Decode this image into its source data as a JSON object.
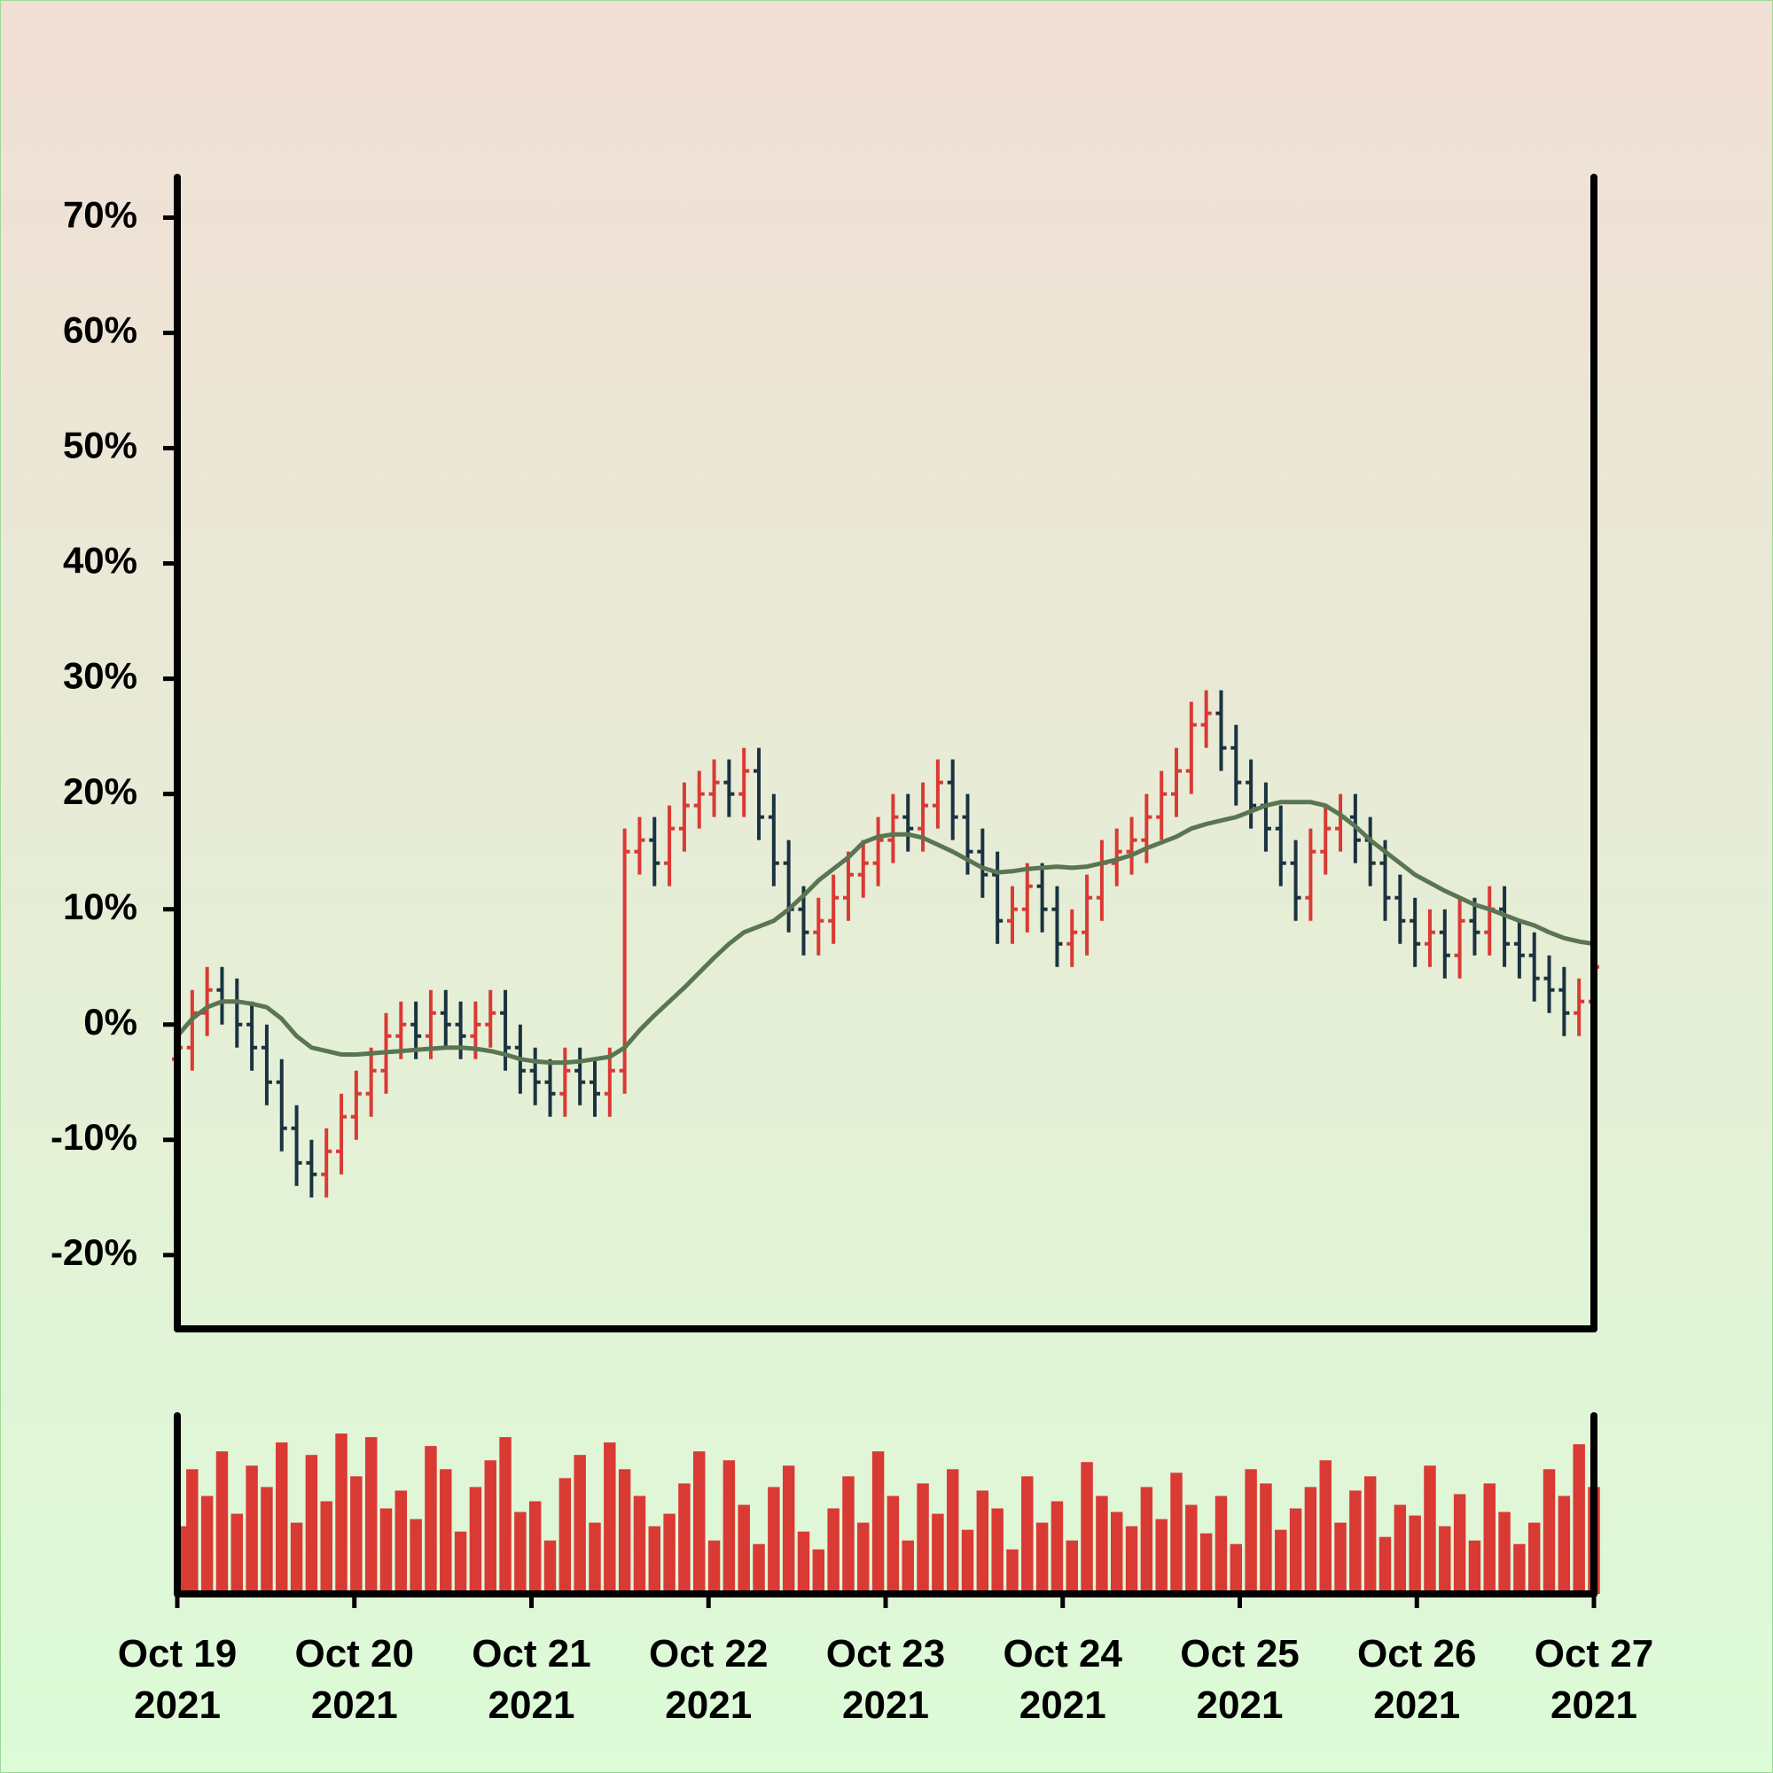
{
  "chart_data": {
    "type": "ohlc",
    "up_color": "#d93a34",
    "down_color": "#1b3340",
    "open": [
      -3,
      -2,
      1,
      3,
      2,
      0,
      -2,
      -5,
      -9,
      -12,
      -13,
      -11,
      -8,
      -6,
      -4,
      -1,
      0,
      -1,
      1,
      0,
      -1,
      0,
      1,
      -2,
      -4,
      -5,
      -6,
      -4,
      -5,
      -6,
      -4,
      15,
      16,
      14,
      17,
      19,
      20,
      21,
      20,
      22,
      18,
      14,
      10,
      8,
      9,
      11,
      13,
      14,
      16,
      18,
      17,
      19,
      21,
      18,
      15,
      13,
      9,
      10,
      12,
      10,
      7,
      8,
      11,
      14,
      15,
      16,
      18,
      20,
      22,
      26,
      27,
      24,
      21,
      19,
      17,
      14,
      11,
      15,
      17,
      18,
      16,
      14,
      11,
      9,
      7,
      8,
      6,
      9,
      8,
      10,
      7,
      6,
      4,
      3,
      1,
      2
    ],
    "high": [
      0,
      3,
      5,
      5,
      4,
      2,
      0,
      -3,
      -7,
      -10,
      -9,
      -6,
      -4,
      -2,
      1,
      2,
      2,
      3,
      3,
      2,
      2,
      3,
      3,
      0,
      -2,
      -3,
      -2,
      -2,
      -3,
      -2,
      17,
      18,
      18,
      19,
      21,
      22,
      23,
      23,
      24,
      24,
      20,
      16,
      12,
      11,
      13,
      15,
      16,
      18,
      20,
      20,
      21,
      23,
      23,
      20,
      17,
      15,
      12,
      14,
      14,
      12,
      10,
      13,
      16,
      17,
      18,
      20,
      22,
      24,
      28,
      29,
      29,
      26,
      23,
      21,
      19,
      16,
      17,
      19,
      20,
      20,
      18,
      16,
      13,
      11,
      10,
      10,
      11,
      11,
      12,
      12,
      9,
      8,
      6,
      5,
      4,
      7
    ],
    "low": [
      -5,
      -4,
      -1,
      0,
      -2,
      -4,
      -7,
      -11,
      -14,
      -15,
      -15,
      -13,
      -10,
      -8,
      -6,
      -3,
      -3,
      -3,
      -2,
      -3,
      -3,
      -2,
      -4,
      -6,
      -7,
      -8,
      -8,
      -7,
      -8,
      -8,
      -6,
      13,
      12,
      12,
      15,
      17,
      18,
      18,
      18,
      16,
      12,
      8,
      6,
      6,
      7,
      9,
      11,
      12,
      14,
      15,
      15,
      17,
      16,
      13,
      11,
      7,
      7,
      8,
      8,
      5,
      5,
      6,
      9,
      12,
      13,
      14,
      16,
      18,
      20,
      24,
      22,
      19,
      17,
      15,
      12,
      9,
      9,
      13,
      15,
      14,
      12,
      9,
      7,
      5,
      5,
      4,
      4,
      6,
      6,
      5,
      4,
      2,
      1,
      -1,
      -1,
      0
    ],
    "close": [
      -2,
      1,
      3,
      2,
      0,
      -2,
      -5,
      -9,
      -12,
      -13,
      -11,
      -8,
      -6,
      -4,
      -1,
      0,
      -1,
      1,
      0,
      -1,
      0,
      1,
      -2,
      -4,
      -5,
      -6,
      -4,
      -5,
      -6,
      -4,
      15,
      16,
      14,
      17,
      19,
      20,
      21,
      20,
      22,
      18,
      14,
      10,
      8,
      9,
      11,
      13,
      14,
      16,
      18,
      17,
      19,
      21,
      18,
      15,
      13,
      9,
      10,
      12,
      10,
      7,
      8,
      11,
      14,
      15,
      16,
      18,
      20,
      22,
      26,
      27,
      24,
      21,
      19,
      17,
      14,
      11,
      15,
      17,
      18,
      16,
      14,
      11,
      9,
      7,
      8,
      6,
      9,
      8,
      10,
      7,
      6,
      4,
      3,
      1,
      2,
      5
    ],
    "moving_average": {
      "color": "#5a7552",
      "values": [
        -1,
        0.5,
        1.5,
        2,
        2,
        1.8,
        1.5,
        0.5,
        -1,
        -2,
        -2.3,
        -2.6,
        -2.6,
        -2.5,
        -2.4,
        -2.3,
        -2.2,
        -2.1,
        -2,
        -2,
        -2.1,
        -2.3,
        -2.6,
        -3,
        -3.2,
        -3.3,
        -3.3,
        -3.2,
        -3,
        -2.8,
        -2,
        -0.5,
        0.8,
        2,
        3.2,
        4.5,
        5.8,
        7,
        8,
        8.5,
        9,
        10,
        11.2,
        12.5,
        13.5,
        14.5,
        15.8,
        16.3,
        16.5,
        16.5,
        16.2,
        15.6,
        15,
        14.3,
        13.6,
        13.2,
        13.3,
        13.5,
        13.6,
        13.7,
        13.6,
        13.7,
        14,
        14.3,
        14.7,
        15.3,
        15.8,
        16.3,
        17,
        17.4,
        17.7,
        18,
        18.5,
        19,
        19.3,
        19.3,
        19.3,
        19,
        18.2,
        17.2,
        16,
        15,
        14,
        13,
        12.3,
        11.6,
        11,
        10.4,
        10,
        9.5,
        9,
        8.6,
        8,
        7.5,
        7.2,
        7
      ]
    },
    "volume": {
      "color": "#d93a34",
      "ylim": [
        0,
        100
      ],
      "values": [
        38,
        70,
        55,
        80,
        45,
        72,
        60,
        85,
        40,
        78,
        52,
        90,
        66,
        88,
        48,
        58,
        42,
        83,
        70,
        35,
        60,
        75,
        88,
        46,
        52,
        30,
        65,
        78,
        40,
        85,
        70,
        55,
        38,
        45,
        62,
        80,
        30,
        75,
        50,
        28,
        60,
        72,
        35,
        25,
        48,
        66,
        40,
        80,
        55,
        30,
        62,
        45,
        70,
        36,
        58,
        48,
        25,
        66,
        40,
        52,
        30,
        74,
        55,
        46,
        38,
        60,
        42,
        68,
        50,
        34,
        55,
        28,
        70,
        62,
        36,
        48,
        60,
        75,
        40,
        58,
        66,
        32,
        50,
        44,
        72,
        38,
        56,
        30,
        62,
        46,
        28,
        40,
        70,
        55,
        84,
        60
      ]
    },
    "xlim": [
      "2021-10-19",
      "2021-10-27"
    ],
    "xticks": [
      {
        "value": "2021-10-19",
        "label": [
          "Oct 19",
          "2021"
        ]
      },
      {
        "value": "2021-10-20",
        "label": [
          "Oct 20",
          "2021"
        ]
      },
      {
        "value": "2021-10-21",
        "label": [
          "Oct 21",
          "2021"
        ]
      },
      {
        "value": "2021-10-22",
        "label": [
          "Oct 22",
          "2021"
        ]
      },
      {
        "value": "2021-10-23",
        "label": [
          "Oct 23",
          "2021"
        ]
      },
      {
        "value": "2021-10-24",
        "label": [
          "Oct 24",
          "2021"
        ]
      },
      {
        "value": "2021-10-25",
        "label": [
          "Oct 25",
          "2021"
        ]
      },
      {
        "value": "2021-10-26",
        "label": [
          "Oct 26",
          "2021"
        ]
      },
      {
        "value": "2021-10-27",
        "label": [
          "Oct 27",
          "2021"
        ]
      }
    ],
    "ylim": [
      -26.4,
      73.5
    ],
    "yticks": [
      {
        "value": -20,
        "label": "-20%"
      },
      {
        "value": -10,
        "label": "-10%"
      },
      {
        "value": 0,
        "label": "0%"
      },
      {
        "value": 10,
        "label": "10%"
      },
      {
        "value": 20,
        "label": "20%"
      },
      {
        "value": 30,
        "label": "30%"
      },
      {
        "value": 40,
        "label": "40%"
      },
      {
        "value": 50,
        "label": "50%"
      },
      {
        "value": 60,
        "label": "60%"
      },
      {
        "value": 70,
        "label": "70%"
      }
    ],
    "grid": false
  }
}
